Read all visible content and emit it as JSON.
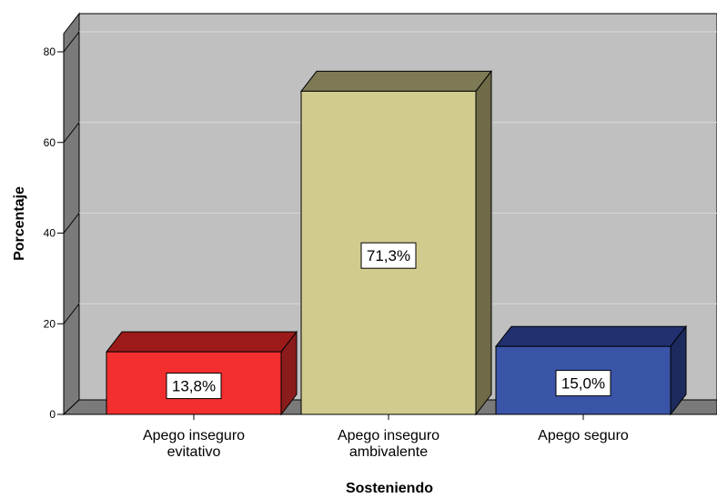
{
  "chart_data": {
    "type": "bar",
    "categories": [
      [
        "Apego inseguro",
        "evitativo"
      ],
      [
        "Apego inseguro",
        "ambivalente"
      ],
      [
        "Apego seguro"
      ]
    ],
    "values": [
      13.8,
      71.3,
      15.0
    ],
    "data_labels": [
      "13,8%",
      "71,3%",
      "15,0%"
    ],
    "xlabel": "Sosteniendo",
    "ylabel": "Porcentaje",
    "ylim": [
      0,
      80
    ],
    "yticks": [
      0,
      20,
      40,
      60,
      80
    ],
    "grid": true,
    "style": "3d",
    "colors": {
      "bars": [
        "#f22e2e",
        "#d2cb8e",
        "#3a54a8"
      ],
      "bar_tops": [
        "#9c1a1a",
        "#7d7a55",
        "#223070"
      ],
      "bar_sides": [
        "#8a1c1c",
        "#6f6a48",
        "#1c2a5e"
      ],
      "wall": "#c0c0c0",
      "wall_side": "#7a7a7a",
      "gridline": "#d8d8d8"
    }
  }
}
